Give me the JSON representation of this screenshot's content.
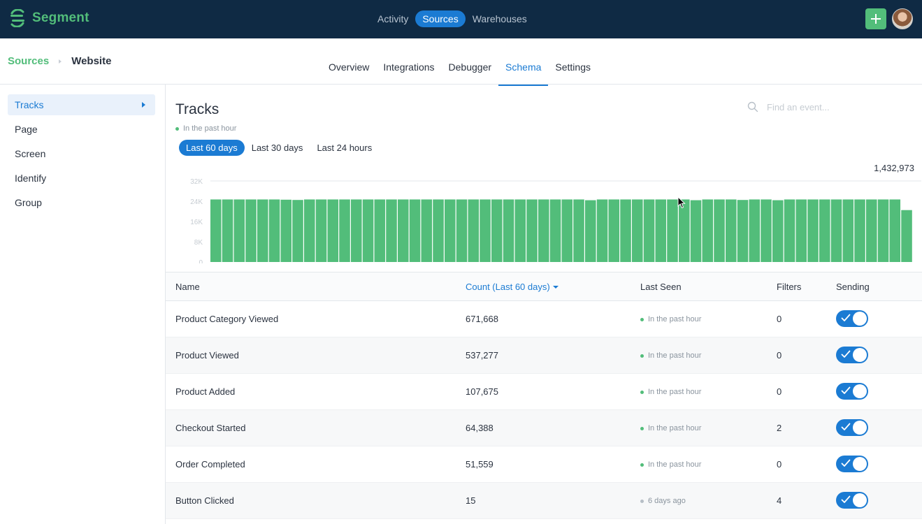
{
  "app": {
    "name": "Segment",
    "nav": [
      {
        "label": "Activity",
        "active": false
      },
      {
        "label": "Sources",
        "active": true
      },
      {
        "label": "Warehouses",
        "active": false
      }
    ],
    "brand_color": "#52bd7a",
    "accent_color": "#1b7bd3",
    "icons": {
      "add": "plus-icon",
      "avatar": "user-avatar"
    }
  },
  "breadcrumb": {
    "parent": "Sources",
    "current": "Website"
  },
  "subtabs": [
    {
      "label": "Overview",
      "active": false
    },
    {
      "label": "Integrations",
      "active": false
    },
    {
      "label": "Debugger",
      "active": false
    },
    {
      "label": "Schema",
      "active": true
    },
    {
      "label": "Settings",
      "active": false
    }
  ],
  "sidebar": {
    "items": [
      {
        "label": "Tracks",
        "active": true
      },
      {
        "label": "Page",
        "active": false
      },
      {
        "label": "Screen",
        "active": false
      },
      {
        "label": "Identify",
        "active": false
      },
      {
        "label": "Group",
        "active": false
      }
    ]
  },
  "main": {
    "title": "Tracks",
    "status": "In the past hour",
    "search_placeholder": "Find an event...",
    "ranges": [
      {
        "label": "Last 60 days",
        "active": true
      },
      {
        "label": "Last 30 days",
        "active": false
      },
      {
        "label": "Last 24 hours",
        "active": false
      }
    ],
    "total": "1,432,973"
  },
  "chart_data": {
    "type": "bar",
    "title": "",
    "xlabel": "",
    "ylabel": "",
    "ylim": [
      0,
      32000
    ],
    "yticks": [
      "32K",
      "24K",
      "16K",
      "8K",
      "0"
    ],
    "ytick_values": [
      32000,
      24000,
      16000,
      8000,
      0
    ],
    "grid": true,
    "color": "#52bd7a",
    "values": [
      24700,
      24700,
      24700,
      24700,
      24700,
      24700,
      24600,
      24500,
      24700,
      24700,
      24700,
      24700,
      24700,
      24700,
      24700,
      24700,
      24700,
      24700,
      24700,
      24700,
      24700,
      24700,
      24700,
      24700,
      24700,
      24700,
      24700,
      24700,
      24700,
      24700,
      24700,
      24700,
      24400,
      24700,
      24700,
      24700,
      24700,
      24700,
      24700,
      24700,
      24700,
      24400,
      24700,
      24700,
      24700,
      24500,
      24700,
      24700,
      24400,
      24700,
      24700,
      24700,
      24700,
      24700,
      24700,
      24700,
      24700,
      24700,
      24700,
      20500
    ]
  },
  "table": {
    "columns": {
      "name": "Name",
      "count": "Count (Last 60 days)",
      "last_seen": "Last Seen",
      "filters": "Filters",
      "sending": "Sending"
    },
    "rows": [
      {
        "name": "Product Category Viewed",
        "count": "671,668",
        "last_seen": "In the past hour",
        "recent": true,
        "filters": "0",
        "sending": true
      },
      {
        "name": "Product Viewed",
        "count": "537,277",
        "last_seen": "In the past hour",
        "recent": true,
        "filters": "0",
        "sending": true
      },
      {
        "name": "Product Added",
        "count": "107,675",
        "last_seen": "In the past hour",
        "recent": true,
        "filters": "0",
        "sending": true
      },
      {
        "name": "Checkout Started",
        "count": "64,388",
        "last_seen": "In the past hour",
        "recent": true,
        "filters": "2",
        "sending": true
      },
      {
        "name": "Order Completed",
        "count": "51,559",
        "last_seen": "In the past hour",
        "recent": true,
        "filters": "0",
        "sending": true
      },
      {
        "name": "Button Clicked",
        "count": "15",
        "last_seen": "6 days ago",
        "recent": false,
        "filters": "4",
        "sending": true
      }
    ]
  }
}
